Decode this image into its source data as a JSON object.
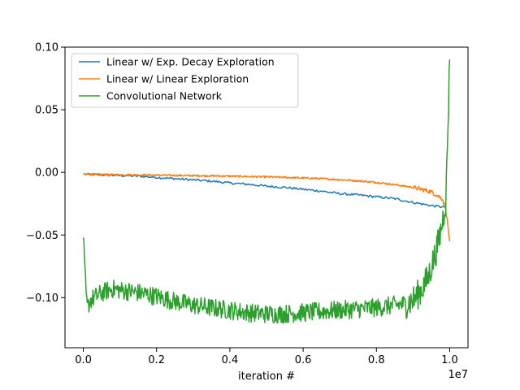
{
  "chart_data": {
    "type": "line",
    "title": "",
    "xlabel": "iteration #",
    "ylabel": "",
    "x_offset_label": "1e7",
    "xlim": [
      -0.05,
      1.05
    ],
    "ylim": [
      -0.14,
      0.1
    ],
    "x_ticks": [
      0.0,
      0.2,
      0.4,
      0.6,
      0.8,
      1.0
    ],
    "x_tick_labels": [
      "0.0",
      "0.2",
      "0.4",
      "0.6",
      "0.8",
      "1.0"
    ],
    "y_ticks": [
      0.1,
      0.05,
      0.0,
      -0.05,
      -0.1
    ],
    "y_tick_labels": [
      "0.10",
      "0.05",
      "0.00",
      "−0.05",
      "−0.10"
    ],
    "grid": false,
    "legend_position": "upper-left",
    "x_units_note": "x values in units of 1e7 iterations",
    "series": [
      {
        "name": "Linear w/ Exp. Decay Exploration",
        "color": "#1f77b4",
        "x": [
          0.0,
          0.05,
          0.1,
          0.15,
          0.2,
          0.25,
          0.3,
          0.35,
          0.4,
          0.45,
          0.5,
          0.55,
          0.6,
          0.65,
          0.7,
          0.75,
          0.8,
          0.85,
          0.9,
          0.95,
          0.99
        ],
        "y": [
          -0.0015,
          -0.002,
          -0.0025,
          -0.003,
          -0.004,
          -0.005,
          -0.006,
          -0.007,
          -0.0085,
          -0.0095,
          -0.011,
          -0.012,
          -0.0135,
          -0.015,
          -0.017,
          -0.018,
          -0.0195,
          -0.021,
          -0.024,
          -0.0265,
          -0.028
        ]
      },
      {
        "name": "Linear w/ Linear Exploration",
        "color": "#ff7f0e",
        "x": [
          0.0,
          0.05,
          0.1,
          0.15,
          0.2,
          0.25,
          0.3,
          0.35,
          0.4,
          0.45,
          0.5,
          0.55,
          0.6,
          0.65,
          0.7,
          0.75,
          0.8,
          0.85,
          0.9,
          0.95,
          0.98,
          0.99,
          1.0
        ],
        "y": [
          -0.0015,
          -0.0017,
          -0.0019,
          -0.002,
          -0.0022,
          -0.0024,
          -0.0026,
          -0.0028,
          -0.003,
          -0.0033,
          -0.0036,
          -0.004,
          -0.0045,
          -0.005,
          -0.0058,
          -0.0068,
          -0.008,
          -0.0098,
          -0.012,
          -0.0155,
          -0.021,
          -0.03,
          -0.055
        ]
      },
      {
        "name": "Convolutional Network",
        "color": "#2ca02c",
        "x": [
          0.0,
          0.005,
          0.01,
          0.02,
          0.04,
          0.06,
          0.08,
          0.1,
          0.15,
          0.2,
          0.25,
          0.3,
          0.35,
          0.4,
          0.45,
          0.5,
          0.55,
          0.6,
          0.65,
          0.7,
          0.75,
          0.8,
          0.85,
          0.88,
          0.9,
          0.92,
          0.94,
          0.95,
          0.96,
          0.97,
          0.98,
          0.99,
          1.0
        ],
        "y": [
          -0.052,
          -0.085,
          -0.108,
          -0.102,
          -0.098,
          -0.095,
          -0.093,
          -0.094,
          -0.096,
          -0.099,
          -0.103,
          -0.106,
          -0.108,
          -0.11,
          -0.112,
          -0.113,
          -0.113,
          -0.112,
          -0.111,
          -0.11,
          -0.109,
          -0.108,
          -0.106,
          -0.105,
          -0.102,
          -0.095,
          -0.085,
          -0.075,
          -0.066,
          -0.055,
          -0.04,
          -0.02,
          0.09
        ]
      }
    ]
  }
}
